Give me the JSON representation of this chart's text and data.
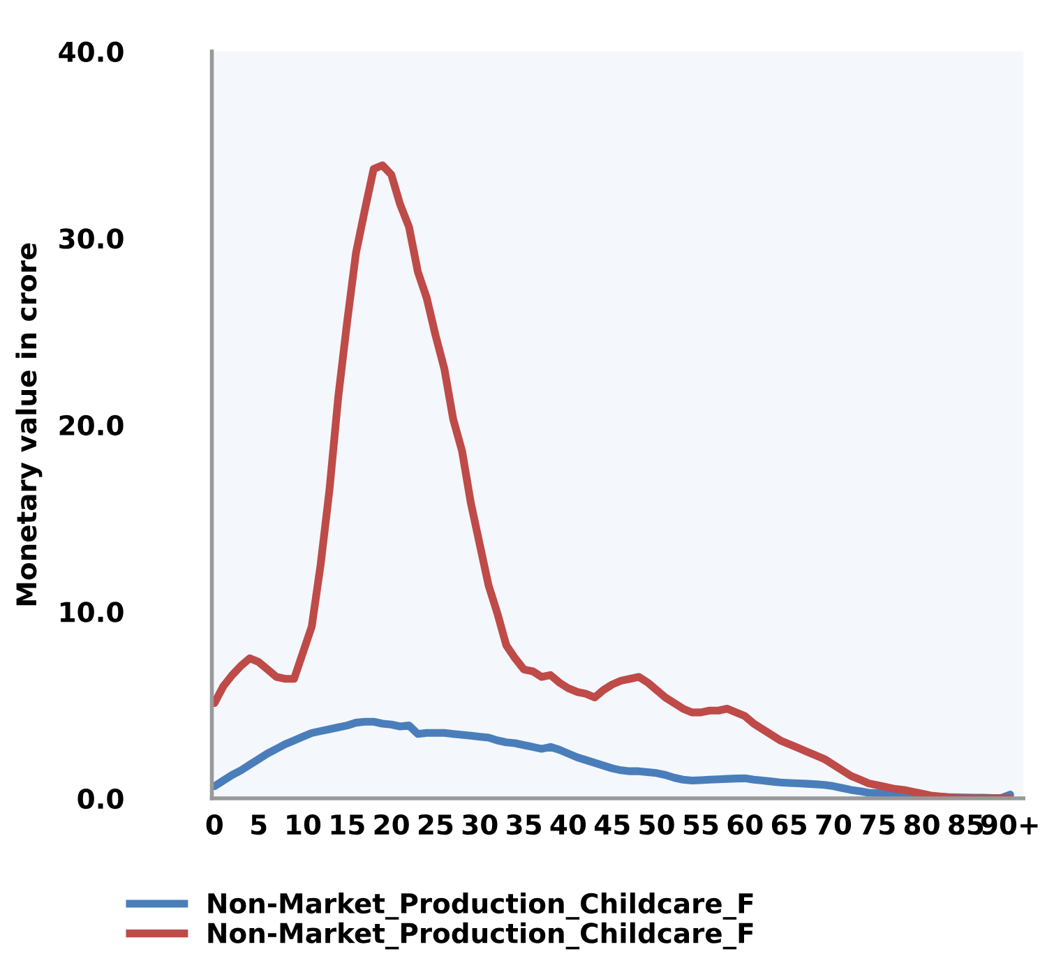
{
  "chart_data": {
    "type": "line",
    "ylabel": "Monetary value in crore",
    "categories": [
      "0",
      null,
      null,
      null,
      null,
      "5",
      null,
      null,
      null,
      null,
      "10",
      null,
      null,
      null,
      null,
      "15",
      null,
      null,
      null,
      null,
      "20",
      null,
      null,
      null,
      null,
      "25",
      null,
      null,
      null,
      null,
      "30",
      null,
      null,
      null,
      null,
      "35",
      null,
      null,
      null,
      null,
      "40",
      null,
      null,
      null,
      null,
      "45",
      null,
      null,
      null,
      null,
      "50",
      null,
      null,
      null,
      null,
      "55",
      null,
      null,
      null,
      null,
      "60",
      null,
      null,
      null,
      null,
      "65",
      null,
      null,
      null,
      null,
      "70",
      null,
      null,
      null,
      null,
      "75",
      null,
      null,
      null,
      null,
      "80",
      null,
      null,
      null,
      null,
      "85",
      null,
      null,
      null,
      null,
      "90+"
    ],
    "series": [
      {
        "name": "Non-Market_Production_Childcare_F",
        "color": "#4a7ebb",
        "values": [
          0.65,
          0.95,
          1.25,
          1.5,
          1.8,
          2.1,
          2.4,
          2.65,
          2.9,
          3.1,
          3.3,
          3.5,
          3.6,
          3.7,
          3.8,
          3.9,
          4.05,
          4.1,
          4.1,
          4.0,
          3.95,
          3.85,
          3.9,
          3.45,
          3.5,
          3.5,
          3.5,
          3.45,
          3.4,
          3.35,
          3.3,
          3.25,
          3.1,
          3.0,
          2.95,
          2.85,
          2.75,
          2.65,
          2.75,
          2.6,
          2.4,
          2.2,
          2.05,
          1.9,
          1.75,
          1.6,
          1.5,
          1.45,
          1.45,
          1.4,
          1.35,
          1.25,
          1.1,
          1.0,
          0.95,
          0.97,
          1.0,
          1.02,
          1.04,
          1.06,
          1.07,
          1.0,
          0.95,
          0.9,
          0.85,
          0.82,
          0.8,
          0.78,
          0.75,
          0.72,
          0.65,
          0.55,
          0.45,
          0.38,
          0.3,
          0.28,
          0.25,
          0.22,
          0.18,
          0.15,
          0.12,
          0.1,
          0.08,
          0.06,
          0.05,
          0.04,
          0.03,
          0.03,
          0.02,
          0.02,
          0.2
        ]
      },
      {
        "name": "Non-Market_Production_Childcare_F",
        "color": "#be4b48",
        "values": [
          5.1,
          6.0,
          6.6,
          7.1,
          7.5,
          7.3,
          6.9,
          6.5,
          6.4,
          6.4,
          7.8,
          9.2,
          12.5,
          16.5,
          21.5,
          25.5,
          29.2,
          31.5,
          33.7,
          33.9,
          33.4,
          31.8,
          30.6,
          28.2,
          26.8,
          24.8,
          23.0,
          20.3,
          18.6,
          15.8,
          13.6,
          11.4,
          9.9,
          8.2,
          7.5,
          6.9,
          6.8,
          6.5,
          6.6,
          6.2,
          5.9,
          5.7,
          5.6,
          5.4,
          5.8,
          6.1,
          6.3,
          6.4,
          6.5,
          6.2,
          5.8,
          5.4,
          5.1,
          4.8,
          4.6,
          4.6,
          4.7,
          4.7,
          4.8,
          4.6,
          4.4,
          4.0,
          3.7,
          3.4,
          3.1,
          2.9,
          2.7,
          2.5,
          2.3,
          2.1,
          1.8,
          1.5,
          1.2,
          1.0,
          0.8,
          0.7,
          0.6,
          0.5,
          0.45,
          0.35,
          0.25,
          0.15,
          0.1,
          0.05,
          0,
          0,
          0,
          0,
          0,
          0,
          0
        ]
      }
    ],
    "ylim": [
      0,
      40
    ],
    "yticks": [
      {
        "value": 0,
        "label": "0.0"
      },
      {
        "value": 10,
        "label": "10.0"
      },
      {
        "value": 20,
        "label": "20.0"
      },
      {
        "value": 30,
        "label": "30.0"
      },
      {
        "value": 40,
        "label": "40.0"
      }
    ],
    "grid": false,
    "legend": "bottom",
    "marker": "none",
    "line_style": "solid"
  }
}
